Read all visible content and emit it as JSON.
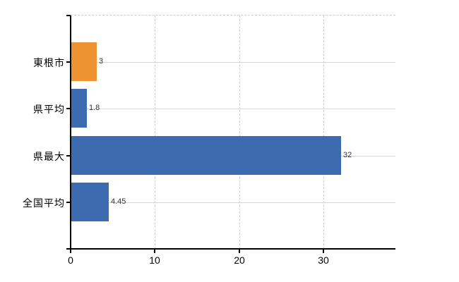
{
  "chart_data": {
    "type": "bar",
    "orientation": "horizontal",
    "title": "",
    "xlabel": "",
    "ylabel": "",
    "categories": [
      "東根市",
      "県平均",
      "県最大",
      "全国平均"
    ],
    "values": [
      3,
      1.8,
      32,
      4.45
    ],
    "data_labels": [
      "3",
      "1.8",
      "32",
      "4.45"
    ],
    "bar_colors": [
      "#EE9332",
      "#3C6BB0",
      "#3C6BB0",
      "#3C6BB0"
    ],
    "x_ticks": [
      0,
      10,
      20,
      30
    ],
    "x_tick_labels": [
      "0",
      "10",
      "20",
      "30"
    ],
    "xlim": [
      0,
      38.5
    ],
    "legend": "none",
    "grid": "horizontal solid lines at category centers; vertical dashed lines at ticks; dashed top plot border",
    "colors": {
      "background": "#ffffff",
      "axis": "#000000",
      "gridline": "#d6d6d6",
      "dashed_gridline": "#cccccc",
      "category_label": "#000000",
      "value_label": "#333333",
      "highlight_bar": "#EE9332",
      "default_bar": "#3C6BB0"
    }
  }
}
